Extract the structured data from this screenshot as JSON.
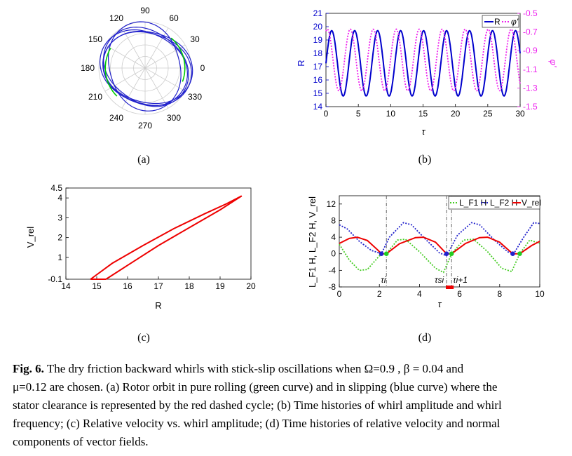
{
  "chart_data": [
    {
      "panel": "a",
      "type": "polar",
      "angle_ticks": [
        "0",
        "30",
        "60",
        "90",
        "120",
        "150",
        "180",
        "210",
        "240",
        "270",
        "300",
        "330"
      ],
      "rolling_radius": 15.0,
      "slipping_radius_range": [
        14.7,
        19.7
      ],
      "series_colors": {
        "rolling": "#00cc00",
        "slipping": "#2222cc"
      }
    },
    {
      "panel": "b",
      "type": "line",
      "xlabel": "τ",
      "ylabel_left": "R",
      "ylabel_right": "φ'",
      "xlim": [
        0,
        30
      ],
      "ylim_left": [
        14,
        21
      ],
      "ylim_right": [
        -1.5,
        -0.5
      ],
      "xticks": [
        "0",
        "5",
        "10",
        "15",
        "20",
        "25",
        "30"
      ],
      "yticks_left": [
        "14",
        "15",
        "16",
        "17",
        "18",
        "19",
        "20",
        "21"
      ],
      "yticks_right": [
        "-0.5",
        "-0.7",
        "-0.9",
        "-1.1",
        "-1.3",
        "-1.5"
      ],
      "series": [
        {
          "name": "R",
          "axis": "left",
          "period": 3.55,
          "min": 14.8,
          "max": 19.7,
          "color": "#0000cc"
        },
        {
          "name": "φ'",
          "axis": "right",
          "period": 3.55,
          "min": -1.33,
          "max": -0.67,
          "color": "#ee22ee"
        }
      ]
    },
    {
      "panel": "c",
      "type": "line",
      "xlabel": "R",
      "ylabel": "V_rel",
      "xlim": [
        14,
        20
      ],
      "ylim": [
        -0.1,
        4.5
      ],
      "xticks": [
        "14",
        "15",
        "16",
        "17",
        "18",
        "19",
        "20"
      ],
      "yticks": [
        "-0.1",
        "1",
        "2",
        "3",
        "4",
        "4.5"
      ],
      "loop_upper": [
        [
          14.8,
          -0.1
        ],
        [
          15.5,
          0.7
        ],
        [
          16.5,
          1.6
        ],
        [
          17.5,
          2.45
        ],
        [
          18.5,
          3.2
        ],
        [
          19.2,
          3.7
        ],
        [
          19.7,
          4.1
        ]
      ],
      "loop_lower": [
        [
          15.3,
          -0.1
        ],
        [
          16.0,
          0.6
        ],
        [
          17.0,
          1.6
        ],
        [
          18.0,
          2.5
        ],
        [
          19.0,
          3.4
        ],
        [
          19.7,
          4.1
        ]
      ],
      "color": "#ee0000"
    },
    {
      "panel": "d",
      "type": "line",
      "xlabel": "τ",
      "ylabel": "L_F1 H, L_F2 H, V_rel",
      "xlim": [
        0,
        10
      ],
      "ylim": [
        -8,
        14
      ],
      "xticks": [
        "0",
        "2",
        "4",
        "6",
        "8",
        "10"
      ],
      "yticks": [
        "-8",
        "-4",
        "0",
        "4",
        "8",
        "12"
      ],
      "series": [
        {
          "name": "L_F1 H",
          "style": "dotted",
          "color": "#44cc22",
          "points": [
            [
              0,
              2.3
            ],
            [
              0.5,
              -1.5
            ],
            [
              1.0,
              -4.0
            ],
            [
              1.4,
              -3.8
            ],
            [
              2.0,
              -0.5
            ],
            [
              2.35,
              0
            ],
            [
              2.9,
              3.3
            ],
            [
              3.3,
              3.5
            ],
            [
              4.0,
              0.5
            ],
            [
              4.8,
              -3.5
            ],
            [
              5.2,
              -4.5
            ],
            [
              5.6,
              0
            ],
            [
              6.2,
              3.3
            ],
            [
              6.7,
              3.5
            ],
            [
              7.4,
              0.5
            ],
            [
              8.1,
              -3.5
            ],
            [
              8.6,
              -4.3
            ],
            [
              9.0,
              0
            ],
            [
              9.5,
              3.3
            ],
            [
              10,
              2.5
            ]
          ]
        },
        {
          "name": "L_F2 H",
          "style": "dotted",
          "color": "#2222cc",
          "points": [
            [
              0,
              7.0
            ],
            [
              0.4,
              6.0
            ],
            [
              1.0,
              3.0
            ],
            [
              1.6,
              0.8
            ],
            [
              2.1,
              0
            ],
            [
              2.5,
              4.0
            ],
            [
              3.2,
              7.5
            ],
            [
              3.6,
              7.0
            ],
            [
              4.3,
              3.5
            ],
            [
              5.0,
              0.2
            ],
            [
              5.35,
              -0.5
            ],
            [
              5.9,
              4.5
            ],
            [
              6.6,
              7.5
            ],
            [
              7.0,
              7.0
            ],
            [
              7.8,
              3.0
            ],
            [
              8.4,
              0.5
            ],
            [
              8.7,
              0
            ],
            [
              9.2,
              4.0
            ],
            [
              9.7,
              7.5
            ],
            [
              10,
              7.3
            ]
          ]
        },
        {
          "name": "V_rel",
          "style": "solid",
          "color": "#ee0000",
          "points": [
            [
              0,
              2.5
            ],
            [
              0.5,
              3.7
            ],
            [
              0.9,
              4.0
            ],
            [
              1.4,
              3.2
            ],
            [
              1.9,
              1.0
            ],
            [
              2.1,
              0
            ],
            [
              2.35,
              0
            ],
            [
              3.0,
              2.4
            ],
            [
              3.8,
              3.9
            ],
            [
              4.2,
              4.0
            ],
            [
              4.8,
              2.8
            ],
            [
              5.35,
              0
            ],
            [
              5.6,
              0
            ],
            [
              6.3,
              2.5
            ],
            [
              7.0,
              3.9
            ],
            [
              7.4,
              4.0
            ],
            [
              8.0,
              2.8
            ],
            [
              8.65,
              0
            ],
            [
              9.0,
              0
            ],
            [
              9.6,
              2.0
            ],
            [
              10,
              3.0
            ]
          ]
        }
      ],
      "annotations": [
        "τi",
        "τsi",
        "τi+1"
      ],
      "markers": {
        "blue": [
          2.1,
          5.35,
          8.65
        ],
        "green": [
          2.35,
          5.6,
          9.0
        ]
      }
    }
  ],
  "labels": {
    "a": "(a)",
    "b": "(b)",
    "c": "(c)",
    "d": "(d)"
  },
  "caption": {
    "prefix": "Fig. 6.",
    "line1": "The dry friction backward whirls with stick-slip oscillations when Ω=0.9 , β = 0.04 and",
    "line2": "μ=0.12 are chosen. (a) Rotor orbit in pure rolling (green curve) and in slipping (blue curve) where the",
    "line3": "stator clearance is represented by the red dashed cycle; (b) Time histories of whirl amplitude and whirl",
    "line4": "frequency; (c) Relative velocity vs. whirl amplitude; (d) Time histories of relative velocity and normal",
    "line5": "components of vector fields."
  }
}
